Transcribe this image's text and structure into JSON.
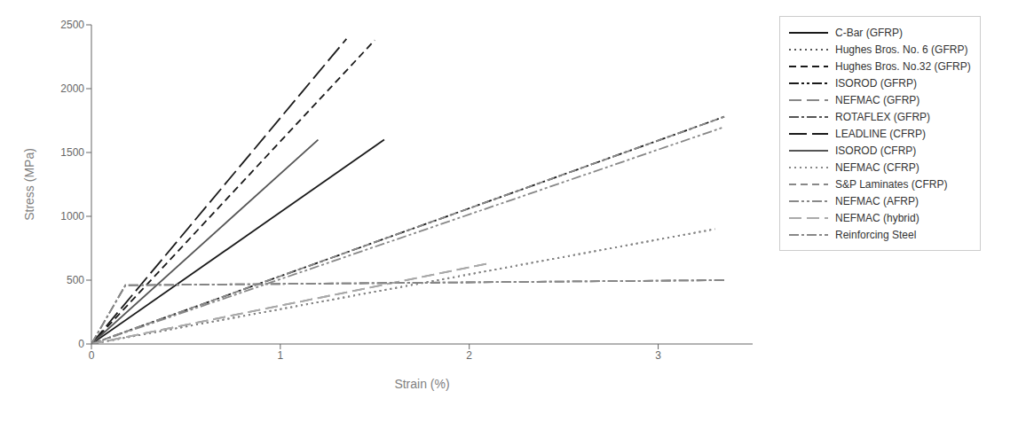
{
  "chart_data": {
    "type": "line",
    "xlabel": "Strain (%)",
    "ylabel": "Stress (MPa)",
    "xlim": [
      0,
      3.5
    ],
    "ylim": [
      0,
      2500
    ],
    "xticks": [
      0,
      1,
      2,
      3
    ],
    "yticks": [
      0,
      500,
      1000,
      1500,
      2000,
      2500
    ],
    "grid": false,
    "legend": "right",
    "series": [
      {
        "name": "C-Bar (GFRP)",
        "color": "#1a1a1a",
        "line_style": "solid",
        "x": [
          0,
          1.55
        ],
        "values": [
          0,
          1600
        ]
      },
      {
        "name": "Hughes Bros. No. 6 (GFRP)",
        "color": "#555555",
        "line_style": "dotted",
        "x": [
          0,
          3.3
        ],
        "values": [
          0,
          900
        ]
      },
      {
        "name": "Hughes Bros. No.32 (GFRP)",
        "color": "#1a1a1a",
        "line_style": "dashed",
        "x": [
          0,
          1.5
        ],
        "values": [
          0,
          2380
        ]
      },
      {
        "name": "ISOROD (GFRP)",
        "color": "#1a1a1a",
        "line_style": "dashdotdot",
        "x": [
          0,
          3.35
        ],
        "values": [
          0,
          1780
        ]
      },
      {
        "name": "NEFMAC (GFRP)",
        "color": "#888888",
        "line_style": "longdash",
        "x": [
          0,
          2.1
        ],
        "values": [
          0,
          630
        ]
      },
      {
        "name": "ROTAFLEX (GFRP)",
        "color": "#555555",
        "line_style": "dashdot",
        "x": [
          0,
          0.18,
          3.35
        ],
        "values": [
          0,
          460,
          500
        ]
      },
      {
        "name": "LEADLINE (CFRP)",
        "color": "#1a1a1a",
        "line_style": "longdash2",
        "x": [
          0,
          1.35
        ],
        "values": [
          0,
          2390
        ]
      },
      {
        "name": "ISOROD (CFRP)",
        "color": "#555555",
        "line_style": "solid",
        "x": [
          0,
          1.2
        ],
        "values": [
          0,
          1600
        ]
      },
      {
        "name": "NEFMAC (CFRP)",
        "color": "#888888",
        "line_style": "dotted",
        "x": [
          0,
          3.3
        ],
        "values": [
          0,
          900
        ]
      },
      {
        "name": "S&P Laminates (CFRP)",
        "color": "#888888",
        "line_style": "dashed",
        "x": [
          0,
          3.35
        ],
        "values": [
          0,
          1780
        ]
      },
      {
        "name": "NEFMAC (AFRP)",
        "color": "#888888",
        "line_style": "dashdotdot",
        "x": [
          0,
          3.35
        ],
        "values": [
          0,
          1700
        ]
      },
      {
        "name": "NEFMAC (hybrid)",
        "color": "#aaaaaa",
        "line_style": "longdash",
        "x": [
          0,
          2.1
        ],
        "values": [
          0,
          630
        ]
      },
      {
        "name": "Reinforcing Steel",
        "color": "#888888",
        "line_style": "dashdot",
        "x": [
          0,
          0.18,
          3.35
        ],
        "values": [
          0,
          460,
          500
        ]
      }
    ]
  }
}
